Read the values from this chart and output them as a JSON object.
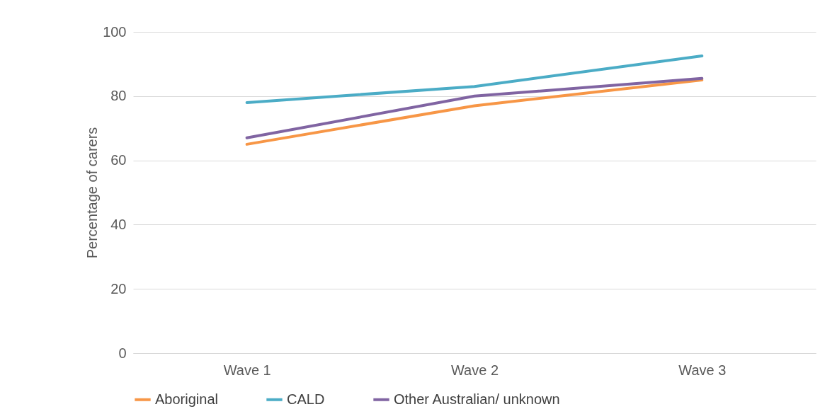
{
  "chart_data": {
    "type": "line",
    "ylabel": "Percentage of carers",
    "categories": [
      "Wave 1",
      "Wave 2",
      "Wave 3"
    ],
    "series": [
      {
        "name": "Aboriginal",
        "color": "#f79646",
        "values": [
          65,
          77,
          85
        ]
      },
      {
        "name": "CALD",
        "color": "#4bacc6",
        "values": [
          78,
          83,
          92.5
        ]
      },
      {
        "name": "Other Australian/ unknown",
        "color": "#8064a2",
        "values": [
          67,
          80,
          85.5
        ]
      }
    ],
    "ylim": [
      0,
      100
    ],
    "yticks": [
      0,
      20,
      40,
      60,
      80,
      100
    ],
    "grid": "y",
    "legend": "bottom",
    "marker": "none",
    "line_style": "solid"
  }
}
